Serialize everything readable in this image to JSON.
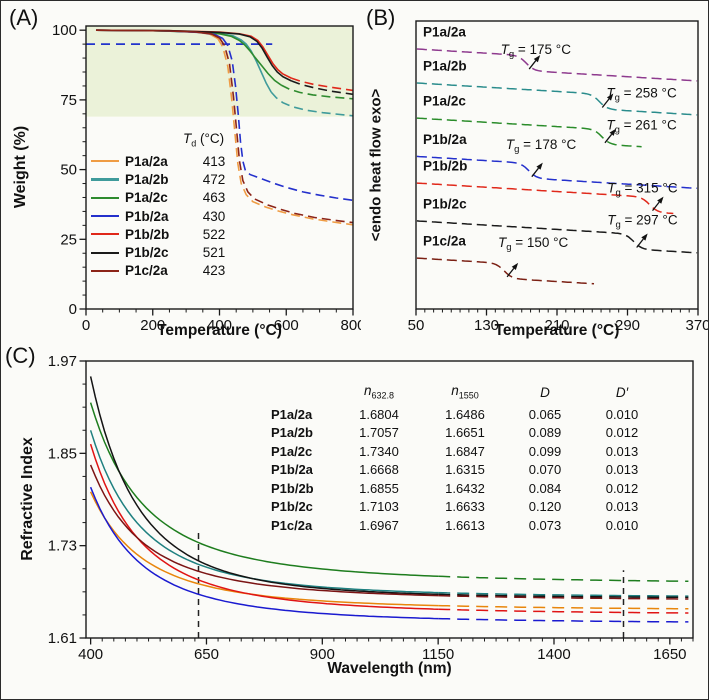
{
  "figure": {
    "background": "#fbfbf8"
  },
  "chart_data": [
    {
      "id": "A",
      "type": "line",
      "tag": "(A)",
      "xlabel": "Temperature (°C)",
      "ylabel": "Weight (%)",
      "xlim": [
        0,
        800
      ],
      "ylim": [
        0,
        101.5
      ],
      "xticks": [
        0,
        200,
        400,
        600,
        800
      ],
      "yticks": [
        0,
        25,
        50,
        75,
        100
      ],
      "x_minor": 50,
      "y_minor": 5,
      "grid": false,
      "shaded_band": {
        "y_from": 69,
        "y_to": 101.5,
        "color": "#ebf2d9"
      },
      "ref_line": {
        "y": 95,
        "x_from": 0,
        "x_to": 558,
        "color": "#2233cc"
      },
      "legend_header": {
        "pre": "T",
        "sub": "d",
        "txt": " (°C)"
      },
      "series": [
        {
          "name": "P1a/2a",
          "color": "#ef9c44",
          "td": "413",
          "dash_from": 395,
          "points": [
            [
              30,
              100
            ],
            [
              150,
              99.9
            ],
            [
              250,
              99.7
            ],
            [
              330,
              99.3
            ],
            [
              370,
              98.6
            ],
            [
              395,
              97
            ],
            [
              410,
              94
            ],
            [
              425,
              87
            ],
            [
              437,
              75
            ],
            [
              447,
              62
            ],
            [
              455,
              52
            ],
            [
              465,
              45
            ],
            [
              480,
              41
            ],
            [
              500,
              38.5
            ],
            [
              540,
              36.5
            ],
            [
              580,
              35
            ],
            [
              620,
              33.8
            ],
            [
              680,
              32.3
            ],
            [
              740,
              31.2
            ],
            [
              800,
              30.2
            ]
          ]
        },
        {
          "name": "P1a/2b",
          "color": "#3f9b9b",
          "td": "472",
          "dash_from": 560,
          "points": [
            [
              30,
              100
            ],
            [
              200,
              99.8
            ],
            [
              330,
              99.4
            ],
            [
              400,
              98.8
            ],
            [
              440,
              98
            ],
            [
              465,
              96.5
            ],
            [
              480,
              95
            ],
            [
              495,
              92.5
            ],
            [
              510,
              89
            ],
            [
              525,
              85
            ],
            [
              540,
              81
            ],
            [
              555,
              77.8
            ],
            [
              570,
              75.8
            ],
            [
              590,
              74
            ],
            [
              620,
              72.5
            ],
            [
              660,
              71.3
            ],
            [
              710,
              70.4
            ],
            [
              800,
              69.3
            ]
          ]
        },
        {
          "name": "P1a/2c",
          "color": "#2e8b2e",
          "td": "463",
          "dash_from": 585,
          "points": [
            [
              30,
              100
            ],
            [
              200,
              99.8
            ],
            [
              330,
              99.4
            ],
            [
              400,
              98.7
            ],
            [
              435,
              97.8
            ],
            [
              460,
              96.3
            ],
            [
              475,
              94.8
            ],
            [
              490,
              92.8
            ],
            [
              505,
              90.5
            ],
            [
              525,
              87.5
            ],
            [
              545,
              84.5
            ],
            [
              565,
              82
            ],
            [
              585,
              80.3
            ],
            [
              610,
              78.8
            ],
            [
              640,
              77.7
            ],
            [
              680,
              76.8
            ],
            [
              730,
              76.1
            ],
            [
              800,
              75.4
            ]
          ]
        },
        {
          "name": "P1b/2a",
          "color": "#2430cc",
          "td": "430",
          "dash_from": 410,
          "points": [
            [
              30,
              100
            ],
            [
              150,
              99.9
            ],
            [
              250,
              99.7
            ],
            [
              340,
              99.2
            ],
            [
              385,
              98.5
            ],
            [
              410,
              97
            ],
            [
              425,
              94.5
            ],
            [
              438,
              89
            ],
            [
              448,
              80
            ],
            [
              456,
              70
            ],
            [
              463,
              60
            ],
            [
              470,
              53
            ],
            [
              478,
              49.5
            ],
            [
              492,
              48.2
            ],
            [
              520,
              47
            ],
            [
              560,
              45.2
            ],
            [
              600,
              43.6
            ],
            [
              650,
              42
            ],
            [
              700,
              40.8
            ],
            [
              750,
              39.8
            ],
            [
              800,
              39
            ]
          ]
        },
        {
          "name": "P1b/2b",
          "color": "#e0281a",
          "td": "522",
          "dash_from": 620,
          "points": [
            [
              30,
              100
            ],
            [
              250,
              99.8
            ],
            [
              400,
              99.3
            ],
            [
              460,
              98.7
            ],
            [
              495,
              97.8
            ],
            [
              515,
              96.3
            ],
            [
              530,
              94
            ],
            [
              545,
              91
            ],
            [
              560,
              88
            ],
            [
              575,
              85.8
            ],
            [
              590,
              84.3
            ],
            [
              615,
              82.8
            ],
            [
              645,
              81.6
            ],
            [
              685,
              80.5
            ],
            [
              735,
              79.5
            ],
            [
              800,
              78.4
            ]
          ]
        },
        {
          "name": "P1b/2c",
          "color": "#1a1a1a",
          "td": "521",
          "dash_from": 620,
          "points": [
            [
              30,
              100
            ],
            [
              250,
              99.8
            ],
            [
              400,
              99.2
            ],
            [
              460,
              98.6
            ],
            [
              492,
              97.6
            ],
            [
              512,
              96
            ],
            [
              528,
              93.5
            ],
            [
              543,
              90.3
            ],
            [
              558,
              87.3
            ],
            [
              573,
              85
            ],
            [
              590,
              83.3
            ],
            [
              615,
              81.8
            ],
            [
              645,
              80.5
            ],
            [
              685,
              79.3
            ],
            [
              735,
              78.1
            ],
            [
              800,
              77
            ]
          ]
        },
        {
          "name": "P1c/2a",
          "color": "#8c2418",
          "td": "423",
          "dash_from": 400,
          "points": [
            [
              30,
              100
            ],
            [
              150,
              99.9
            ],
            [
              250,
              99.7
            ],
            [
              330,
              99.3
            ],
            [
              375,
              98.7
            ],
            [
              400,
              97.2
            ],
            [
              415,
              94.5
            ],
            [
              430,
              88
            ],
            [
              442,
              76
            ],
            [
              452,
              63
            ],
            [
              460,
              53
            ],
            [
              470,
              46
            ],
            [
              485,
              42
            ],
            [
              505,
              39.5
            ],
            [
              545,
              37.3
            ],
            [
              585,
              35.7
            ],
            [
              625,
              34.3
            ],
            [
              685,
              32.8
            ],
            [
              745,
              31.8
            ],
            [
              800,
              31
            ]
          ]
        }
      ]
    },
    {
      "id": "B",
      "type": "line",
      "tag": "(B)",
      "xlabel": "Temperature (°C)",
      "ylabel": "<endo heat flow exo>",
      "xlim": [
        50,
        370
      ],
      "ylim": [
        0,
        100
      ],
      "xticks": [
        50,
        130,
        210,
        290,
        370
      ],
      "yticks": [],
      "x_minor": 10,
      "grid": false,
      "series": [
        {
          "name": "P1a/2a",
          "color": "#8e3a8e",
          "tg": 175,
          "baseline": 90.3,
          "x_end": 369,
          "ann": {
            "pre": "T",
            "sub": "g",
            "txt": " = 175 °C"
          },
          "ann_xy": [
            146,
            88.5
          ]
        },
        {
          "name": "P1a/2b",
          "color": "#2a8c8c",
          "tg": 258,
          "baseline": 78.5,
          "x_end": 369,
          "ann": {
            "pre": "T",
            "sub": "g",
            "txt": " = 258 °C"
          },
          "ann_xy": [
            266,
            73.5
          ]
        },
        {
          "name": "P1a/2c",
          "color": "#2a8c2a",
          "tg": 261,
          "baseline": 66.3,
          "x_end": 308,
          "ann": {
            "pre": "T",
            "sub": "g",
            "txt": " = 261 °C"
          },
          "ann_xy": [
            266,
            62.3
          ]
        },
        {
          "name": "P1b/2a",
          "color": "#2430cc",
          "tg": 178,
          "baseline": 53,
          "x_end": 369,
          "ann": {
            "pre": "T",
            "sub": "g",
            "txt": " = 178 °C"
          },
          "ann_xy": [
            152,
            55.5
          ]
        },
        {
          "name": "P1b/2b",
          "color": "#e0281a",
          "tg": 315,
          "baseline": 43.75,
          "x_end": 342,
          "ann": {
            "pre": "T",
            "sub": "g",
            "txt": " = 315 °C"
          },
          "ann_xy": [
            267,
            40.5
          ]
        },
        {
          "name": "P1b/2c",
          "color": "#1a1a1a",
          "tg": 297,
          "baseline": 30.6,
          "x_end": 369,
          "ann": {
            "pre": "T",
            "sub": "g",
            "txt": " = 297 °C"
          },
          "ann_xy": [
            267,
            29.3
          ]
        },
        {
          "name": "P1c/2a",
          "color": "#7b2014",
          "tg": 150,
          "baseline": 17.7,
          "x_end": 252,
          "ann": {
            "pre": "T",
            "sub": "g",
            "txt": " = 150 °C"
          },
          "ann_xy": [
            143,
            21.5
          ]
        }
      ]
    },
    {
      "id": "C",
      "type": "line",
      "tag": "(C)",
      "xlabel": "Wavelength (nm)",
      "ylabel": "Refractive Index",
      "xlim": [
        390,
        1700
      ],
      "ylim": [
        1.61,
        1.97
      ],
      "xticks": [
        400,
        650,
        900,
        1150,
        1400,
        1650
      ],
      "yticks": [
        1.61,
        1.73,
        1.85,
        1.97
      ],
      "x_minor": 25,
      "y_minor": 0.03,
      "grid": false,
      "dash_from": 1150,
      "vlines": [
        {
          "x": 632.8,
          "y_to": 1.748
        },
        {
          "x": 1550,
          "y_to": 1.698
        }
      ],
      "table_headers": [
        {
          "pre": "n",
          "sub": "632.8"
        },
        {
          "pre": "n",
          "sub": "1550"
        },
        {
          "pre": "D",
          "sub": ""
        },
        {
          "pre": "D′",
          "sub": ""
        }
      ],
      "series": [
        {
          "name": "P1a/2a",
          "color": "#e8860c",
          "n400": 1.8,
          "n632": "1.6804",
          "n1550": "1.6486",
          "D": "0.065",
          "Dp": "0.010"
        },
        {
          "name": "P1a/2b",
          "color": "#1f8080",
          "n400": 1.88,
          "n632": "1.7057",
          "n1550": "1.6651",
          "D": "0.089",
          "Dp": "0.012"
        },
        {
          "name": "P1a/2c",
          "color": "#1e7d1e",
          "n400": 1.916,
          "n632": "1.7340",
          "n1550": "1.6847",
          "D": "0.099",
          "Dp": "0.013"
        },
        {
          "name": "P1b/2a",
          "color": "#1a1ad0",
          "n400": 1.806,
          "n632": "1.6668",
          "n1550": "1.6315",
          "D": "0.070",
          "Dp": "0.013"
        },
        {
          "name": "P1b/2b",
          "color": "#e01414",
          "n400": 1.862,
          "n632": "1.6855",
          "n1550": "1.6432",
          "D": "0.084",
          "Dp": "0.012"
        },
        {
          "name": "P1b/2c",
          "color": "#141414",
          "n400": 1.95,
          "n632": "1.7103",
          "n1550": "1.6633",
          "D": "0.120",
          "Dp": "0.013"
        },
        {
          "name": "P1c/2a",
          "color": "#7b1414",
          "n400": 1.835,
          "n632": "1.6967",
          "n1550": "1.6613",
          "D": "0.073",
          "Dp": "0.010"
        }
      ]
    }
  ]
}
